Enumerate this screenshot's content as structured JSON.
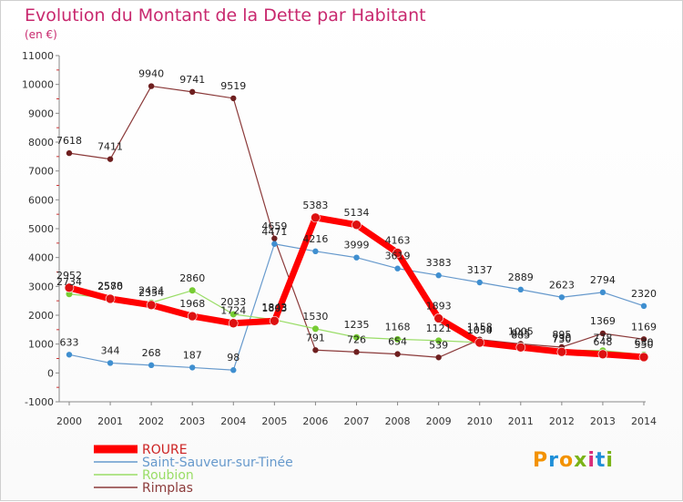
{
  "title": "Evolution du Montant de la Dette par Habitant",
  "unit": "(en €)",
  "logo_text": "Proxiti",
  "chart_data": {
    "type": "line",
    "x": [
      "2000",
      "2001",
      "2002",
      "2003",
      "2004",
      "2005",
      "2006",
      "2007",
      "2008",
      "2009",
      "2010",
      "2011",
      "2012",
      "2013",
      "2014"
    ],
    "ylim": [
      -1000,
      11000
    ],
    "yticks": [
      -1000,
      0,
      1000,
      2000,
      3000,
      4000,
      5000,
      6000,
      7000,
      8000,
      9000,
      10000,
      11000
    ],
    "grid": false,
    "legend_position": "bottom-left",
    "series": [
      {
        "name": "ROURE",
        "color": "#ff0000",
        "marker": "#dd1111",
        "values": [
          2952,
          2570,
          2354,
          1968,
          1724,
          1803,
          5383,
          5134,
          4163,
          1893,
          1050,
          885,
          730,
          648,
          550
        ]
      },
      {
        "name": "Saint-Sauveur-sur-Tinée",
        "color": "#6699cc",
        "marker": "#3f8fd0",
        "values": [
          633,
          344,
          268,
          187,
          98,
          4471,
          4216,
          3999,
          3619,
          3383,
          3137,
          2889,
          2623,
          2794,
          2320
        ]
      },
      {
        "name": "Roubion",
        "color": "#99dd66",
        "marker": "#77cc33",
        "values": [
          2734,
          2588,
          2434,
          2860,
          2033,
          1843,
          1530,
          1235,
          1168,
          1121,
          1054,
          945,
          790,
          778,
          630
        ]
      },
      {
        "name": "Rimplas",
        "color": "#8b3a3a",
        "marker": "#6e1f1f",
        "values": [
          7618,
          7411,
          9940,
          9741,
          9519,
          4659,
          791,
          726,
          654,
          539,
          1158,
          1005,
          895,
          1369,
          1169
        ]
      }
    ]
  }
}
